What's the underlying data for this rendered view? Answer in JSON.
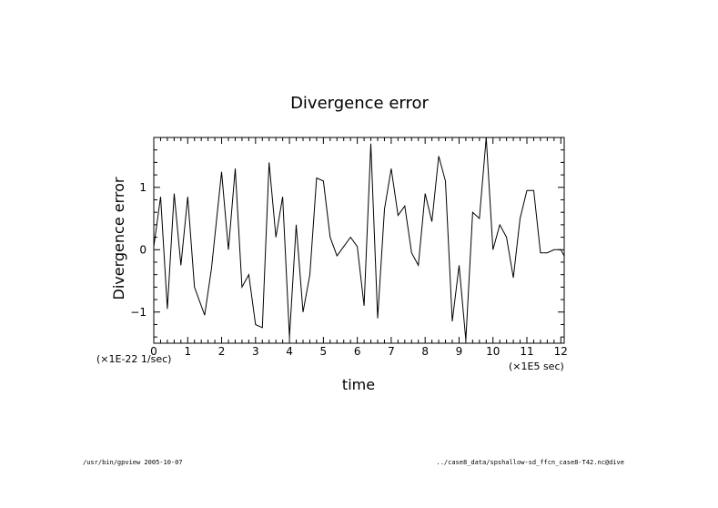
{
  "chart_data": {
    "type": "line",
    "title": "Divergence error",
    "xlabel": "time",
    "ylabel": "Divergence error",
    "x_unit": "(×1E5 sec)",
    "y_unit": "(×1E-22 1/sec)",
    "xlim": [
      0,
      12.1
    ],
    "ylim": [
      -1.5,
      1.8
    ],
    "xticks": [
      "0",
      "1",
      "2",
      "3",
      "4",
      "5",
      "6",
      "7",
      "8",
      "9",
      "10",
      "11",
      "12"
    ],
    "yticks": [
      "1",
      "0",
      "−1"
    ],
    "ytick_values": [
      1,
      0,
      -1
    ],
    "grid": false,
    "series": [
      {
        "x": [
          0,
          0.2,
          0.4,
          0.6,
          0.8,
          1.0,
          1.2,
          1.5,
          1.7,
          2.0,
          2.2,
          2.4,
          2.6,
          2.8,
          3.0,
          3.2,
          3.4,
          3.6,
          3.8,
          4.0,
          4.2,
          4.4,
          4.6,
          4.8,
          5.0,
          5.2,
          5.4,
          5.6,
          5.8,
          6.0,
          6.2,
          6.4,
          6.6,
          6.8,
          7.0,
          7.2,
          7.4,
          7.6,
          7.8,
          8.0,
          8.2,
          8.4,
          8.6,
          8.8,
          9.0,
          9.2,
          9.4,
          9.6,
          9.8,
          10.0,
          10.2,
          10.4,
          10.6,
          10.8,
          11.0,
          11.2,
          11.4,
          11.6,
          11.8,
          12.0,
          12.1
        ],
        "y": [
          0.05,
          0.85,
          -0.95,
          0.9,
          -0.25,
          0.85,
          -0.6,
          -1.05,
          -0.3,
          1.25,
          0.0,
          1.3,
          -0.6,
          -0.4,
          -1.2,
          -1.25,
          1.4,
          0.2,
          0.85,
          -1.4,
          0.4,
          -1.0,
          -0.4,
          1.15,
          1.1,
          0.2,
          -0.1,
          0.05,
          0.2,
          0.05,
          -0.9,
          1.7,
          -1.1,
          0.65,
          1.3,
          0.55,
          0.7,
          -0.05,
          -0.25,
          0.9,
          0.45,
          1.5,
          1.1,
          -1.15,
          -0.25,
          -1.45,
          0.6,
          0.5,
          1.8,
          0.0,
          0.4,
          0.2,
          -0.45,
          0.5,
          0.95,
          0.95,
          -0.05,
          -0.05,
          0.0,
          0.0,
          -0.1
        ]
      }
    ]
  },
  "footer": {
    "left": "/usr/bin/gpview  2005-10-07",
    "right": "../case8_data/spshallow-sd_ffcn_case8-T42.nc@dive"
  }
}
